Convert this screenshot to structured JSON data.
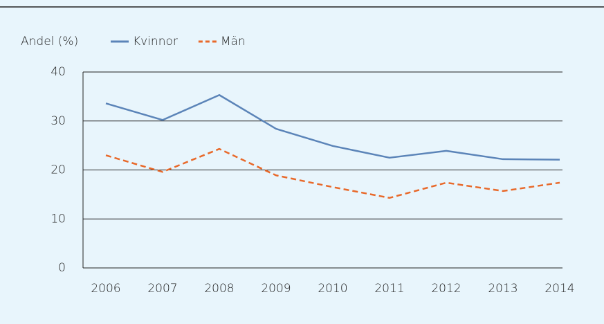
{
  "chart_data": {
    "type": "line",
    "y_label": "Andel (%)",
    "categories": [
      "2006",
      "2007",
      "2008",
      "2009",
      "2010",
      "2011",
      "2012",
      "2013",
      "2014"
    ],
    "series": [
      {
        "name": "Kvinnor",
        "color": "#5b84b8",
        "dashed": false,
        "values": [
          33.6,
          30.2,
          35.3,
          28.4,
          24.9,
          22.5,
          23.9,
          22.2,
          22.1
        ]
      },
      {
        "name": "Män",
        "color": "#e8692a",
        "dashed": true,
        "values": [
          23.0,
          19.6,
          24.3,
          18.9,
          16.5,
          14.3,
          17.4,
          15.7,
          17.4
        ]
      }
    ],
    "ylim": [
      0,
      40
    ],
    "yticks": [
      0,
      10,
      20,
      30,
      40
    ],
    "grid": true
  }
}
